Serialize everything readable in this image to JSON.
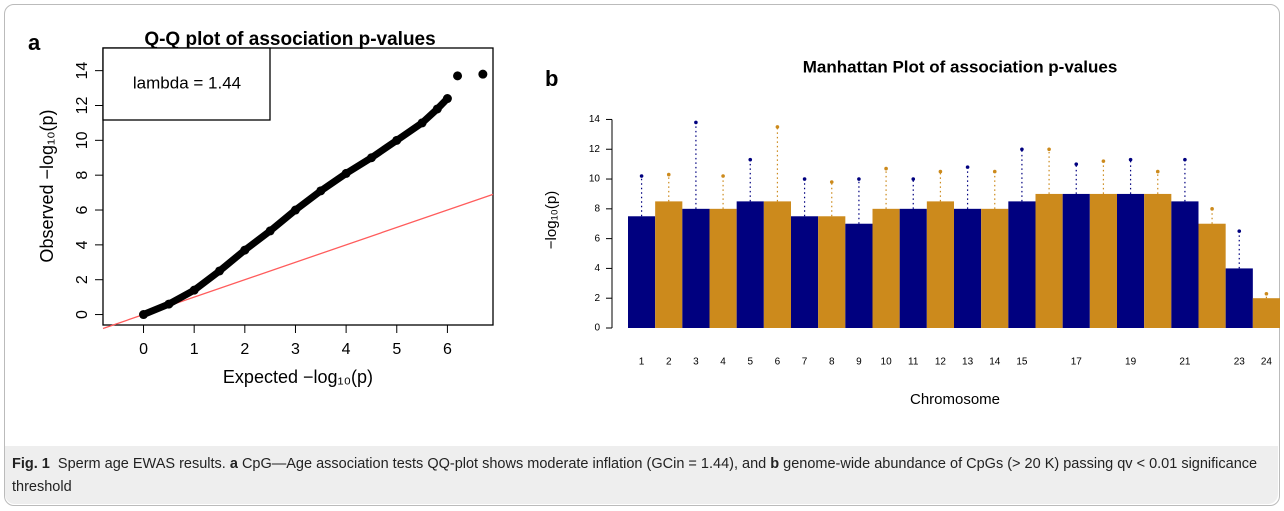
{
  "panel_labels": [
    "a",
    "b"
  ],
  "chart_data": [
    {
      "type": "scatter",
      "title": "Q-Q plot of association p-values",
      "x_label": "Expected −log₁₀(p)",
      "y_label": "Observed −log₁₀(p)",
      "annotation": "lambda = 1.44",
      "x": [
        0,
        0.5,
        1,
        1.5,
        2,
        2.5,
        3,
        3.5,
        4,
        4.5,
        5,
        5.5,
        5.8,
        6.0,
        6.2,
        6.7
      ],
      "y": [
        0,
        0.6,
        1.4,
        2.5,
        3.7,
        4.8,
        6.0,
        7.1,
        8.1,
        9.0,
        10.0,
        11.0,
        11.8,
        12.4,
        13.7,
        13.8
      ],
      "color": "#000000",
      "reference_line": {
        "x": [
          -0.8,
          6.9
        ],
        "y": [
          -0.8,
          6.9
        ],
        "color": "#ff5c5c"
      },
      "xlim": [
        -0.8,
        6.9
      ],
      "ylim": [
        -0.6,
        15.3
      ],
      "xticks": [
        0,
        1,
        2,
        3,
        4,
        5,
        6
      ],
      "yticks": [
        0,
        2,
        4,
        6,
        8,
        10,
        12,
        14
      ]
    },
    {
      "type": "manhattan",
      "title": "Manhattan Plot of association p-values",
      "x_label": "Chromosome",
      "y_label": "−log₁₀(p)",
      "categories": [
        "1",
        "2",
        "3",
        "4",
        "5",
        "6",
        "7",
        "8",
        "9",
        "10",
        "11",
        "12",
        "13",
        "14",
        "15",
        null,
        "17",
        null,
        "19",
        null,
        "21",
        null,
        "23",
        "24"
      ],
      "values": [
        10.2,
        10.3,
        13.8,
        10.2,
        11.3,
        13.5,
        10.0,
        9.8,
        10.0,
        10.7,
        10.0,
        10.5,
        10.8,
        10.5,
        12.0,
        12.0,
        11.0,
        11.2,
        11.3,
        10.5,
        11.3,
        8.0,
        6.5,
        2.3
      ],
      "bulk_values": [
        7.5,
        8.5,
        8.0,
        8.0,
        8.5,
        8.5,
        7.5,
        7.5,
        7.0,
        8.0,
        8.0,
        8.5,
        8.0,
        8.0,
        8.5,
        9.0,
        9.0,
        9.0,
        9.0,
        9.0,
        8.5,
        7.0,
        4.0,
        2.0
      ],
      "colors": [
        "#00007f",
        "#cc8a1c"
      ],
      "ylim": [
        0,
        14.5
      ],
      "yticks": [
        0,
        2,
        4,
        6,
        8,
        10,
        12,
        14
      ]
    }
  ],
  "caption": [
    {
      "text": "Fig. 1",
      "bold": true
    },
    {
      "text": "  Sperm age EWAS results. ",
      "bold": false
    },
    {
      "text": "a",
      "bold": true
    },
    {
      "text": " CpG—Age association tests QQ-plot shows moderate inflation (GCin = 1.44), and ",
      "bold": false
    },
    {
      "text": "b",
      "bold": true
    },
    {
      "text": " genome-wide abundance of CpGs (> 20 K) passing qv < 0.01 significance threshold",
      "bold": false
    }
  ]
}
